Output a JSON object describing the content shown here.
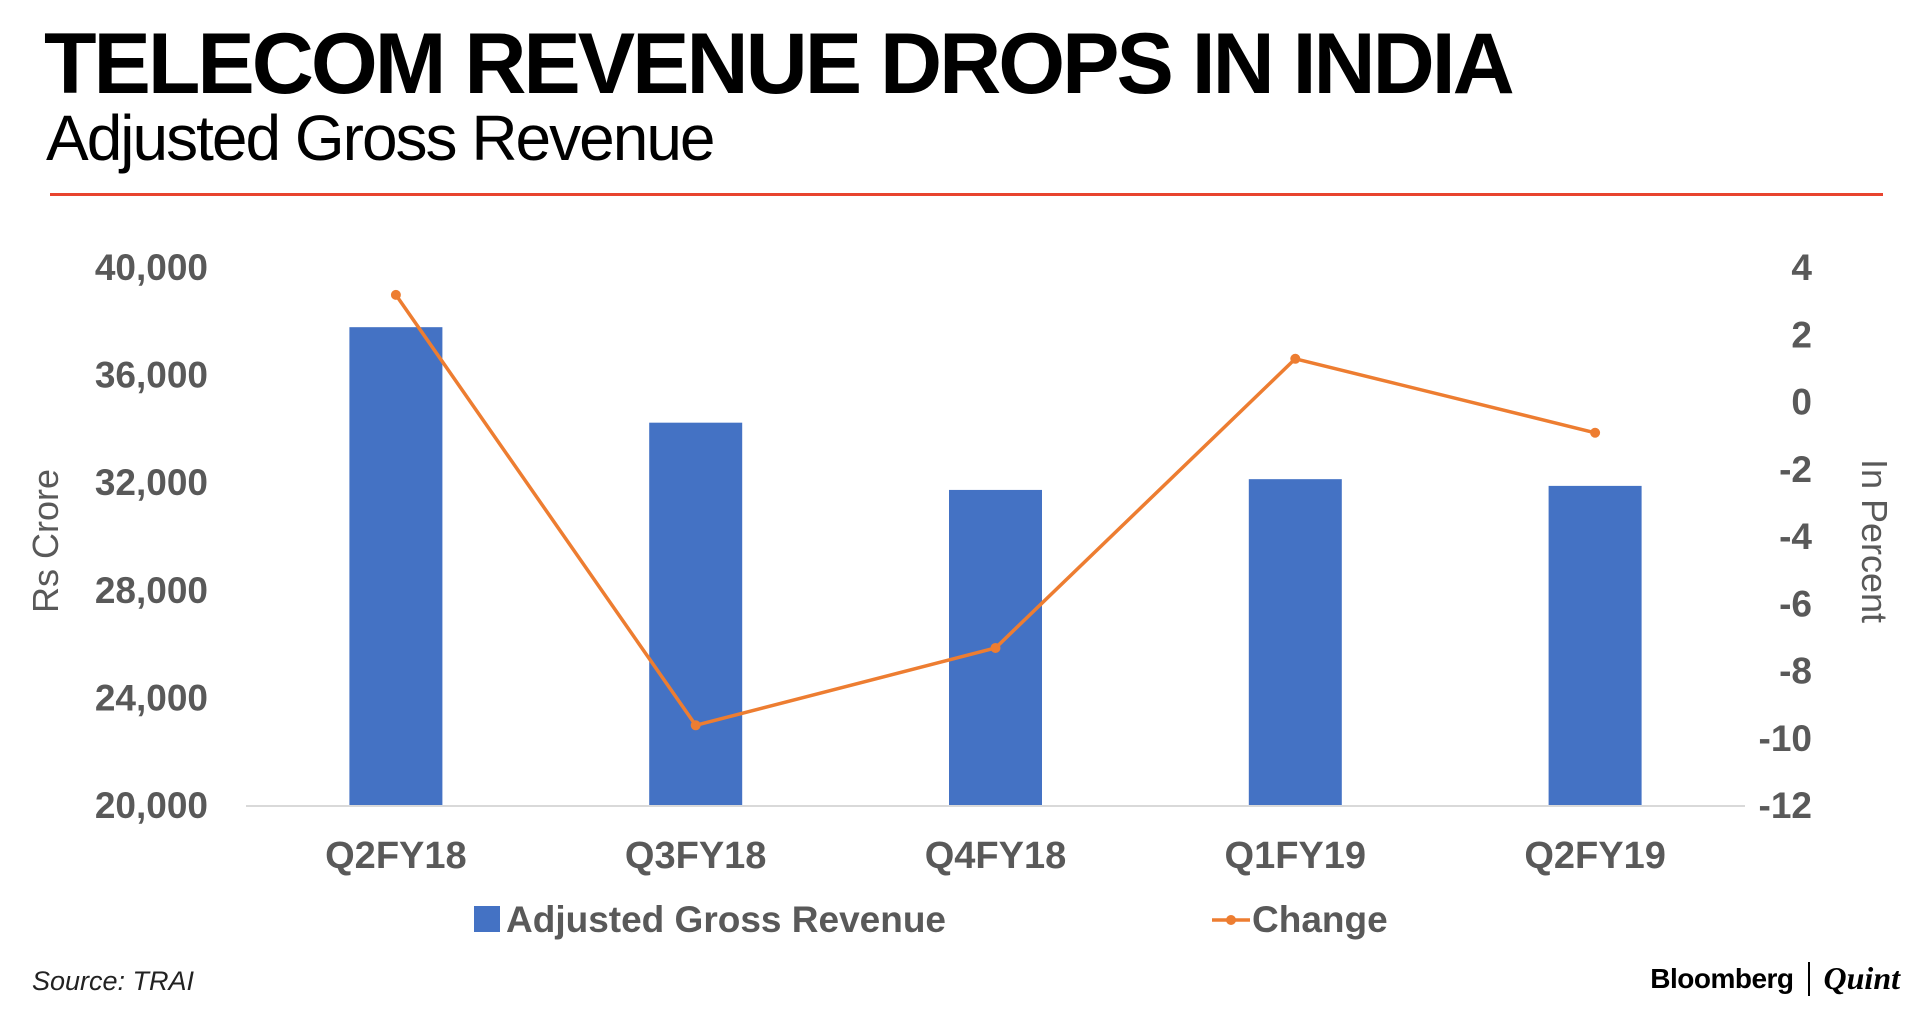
{
  "title": "TELECOM REVENUE DROPS IN INDIA",
  "subtitle": "Adjusted Gross Revenue",
  "source": "Source: TRAI",
  "brand": {
    "left": "Bloomberg",
    "right": "Quint"
  },
  "colors": {
    "bar": "#4472c4",
    "line": "#ed7d31",
    "rule": "#e8442f",
    "axis_text": "#595959",
    "axis_line": "#d9d9d9"
  },
  "chart_data": {
    "type": "bar",
    "categories": [
      "Q2FY18",
      "Q3FY18",
      "Q4FY18",
      "Q1FY19",
      "Q2FY19"
    ],
    "series": [
      {
        "name": "Adjusted Gross Revenue",
        "type": "bar",
        "axis": "left",
        "values": [
          37800,
          34250,
          31750,
          32150,
          31900
        ]
      },
      {
        "name": "Change",
        "type": "line",
        "axis": "right",
        "values": [
          3.2,
          -9.6,
          -7.3,
          1.3,
          -0.9
        ]
      }
    ],
    "ylabel": "Rs Crore",
    "y2label": "In Percent",
    "ylim": [
      20000,
      40000
    ],
    "y2lim": [
      -12,
      4
    ],
    "yticks": [
      "20,000",
      "24,000",
      "28,000",
      "32,000",
      "36,000",
      "40,000"
    ],
    "y2ticks": [
      "-12",
      "-10",
      "-8",
      "-6",
      "-4",
      "-2",
      "0",
      "2",
      "4"
    ],
    "legend_position": "bottom",
    "grid": false
  }
}
